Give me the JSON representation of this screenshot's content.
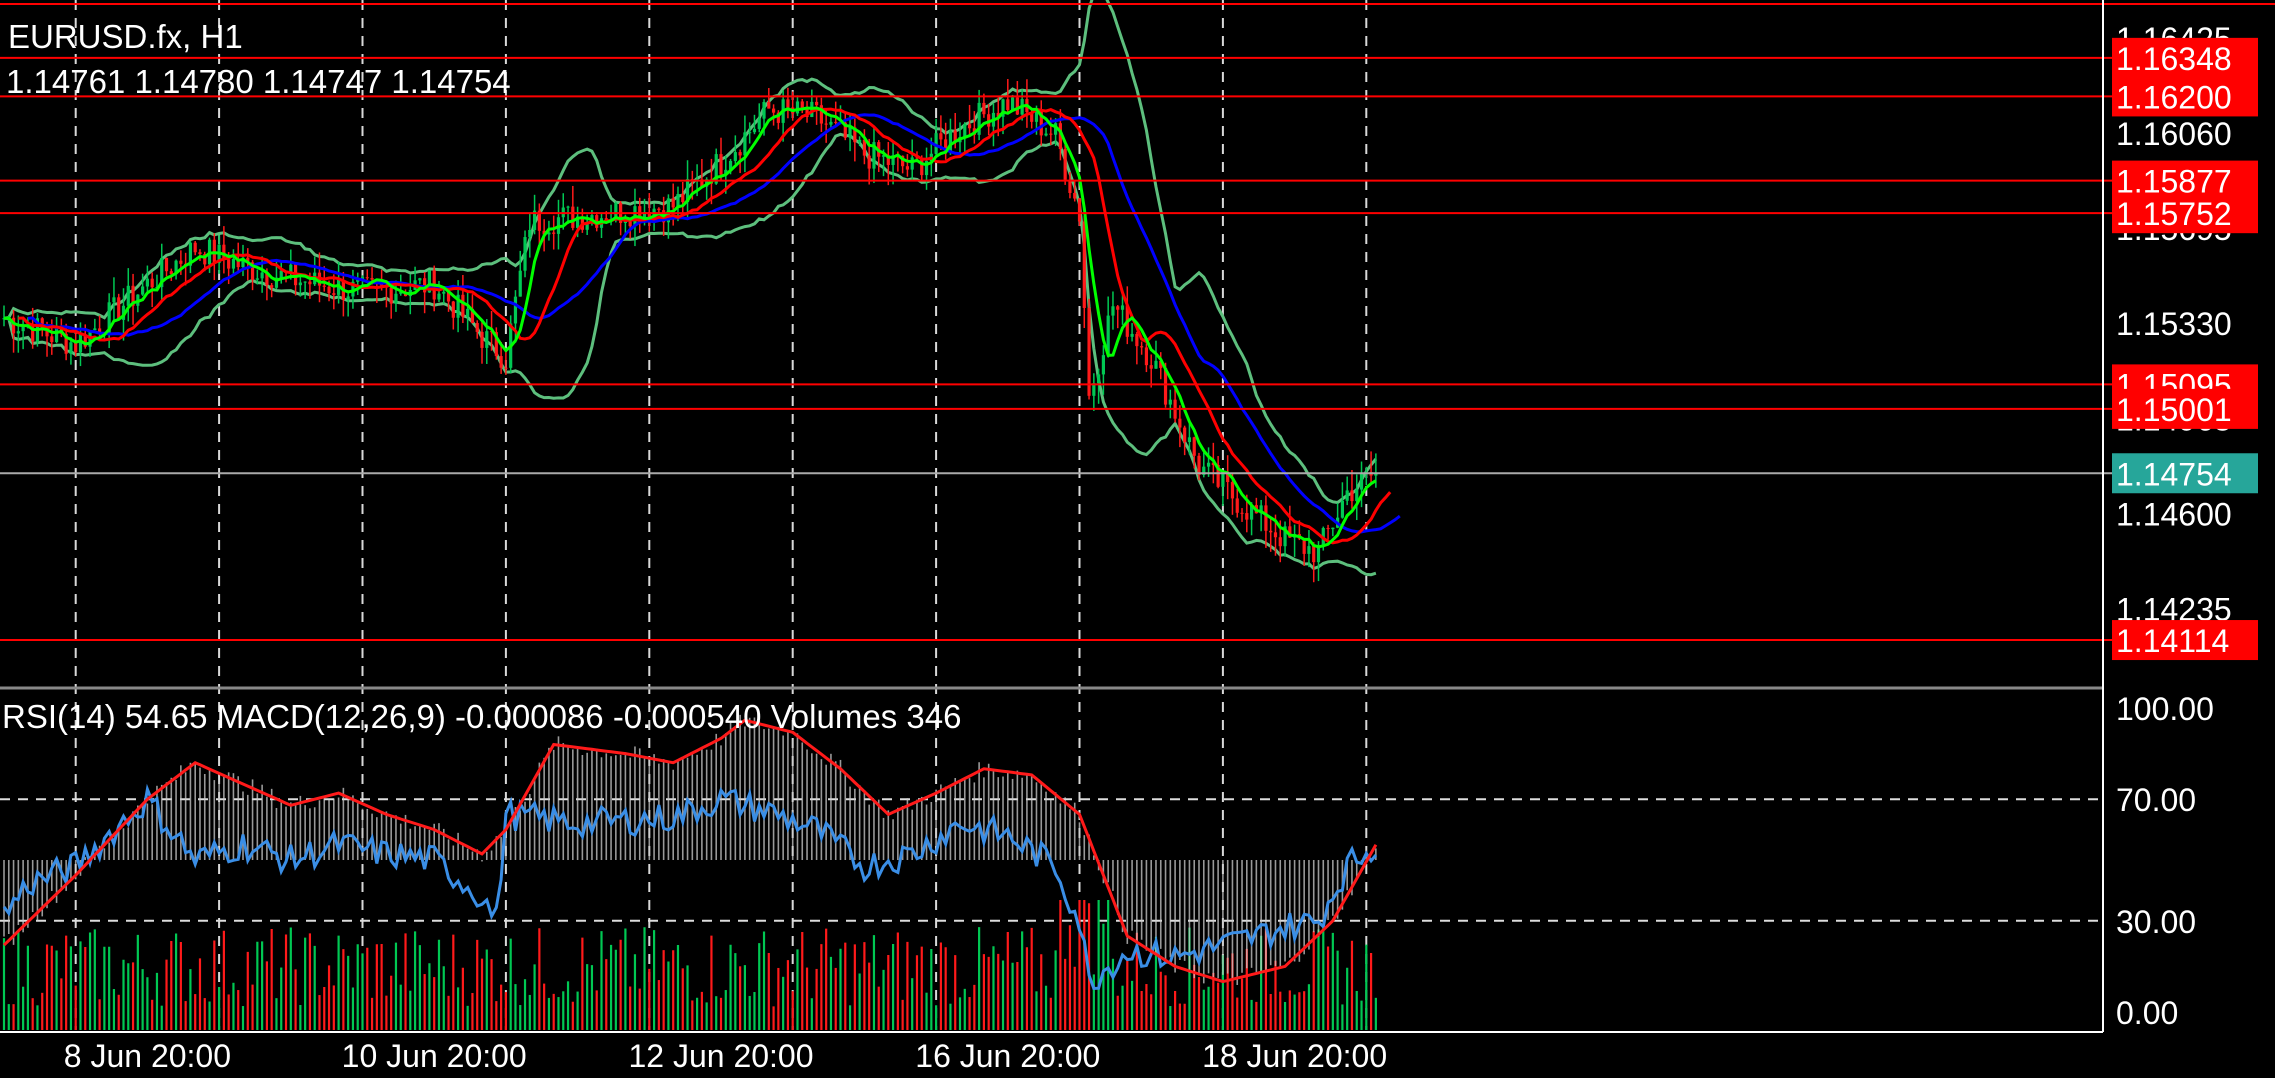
{
  "header": {
    "symbol": "EURUSD.fx, H1",
    "ohlc": "1.14761 1.14780 1.14747 1.14754"
  },
  "indicator_header": "RSI(14) 54.65 MACD(12,26,9) -0.000086 -0.000540 Volumes 346",
  "price_axis": {
    "ticks": [
      {
        "label": "1.16425",
        "value": 1.16425
      },
      {
        "label": "1.16060",
        "value": 1.1606
      },
      {
        "label": "1.15695",
        "value": 1.15695
      },
      {
        "label": "1.15330",
        "value": 1.1533
      },
      {
        "label": "1.14965",
        "value": 1.14965
      },
      {
        "label": "1.14600",
        "value": 1.146
      },
      {
        "label": "1.14235",
        "value": 1.14235
      }
    ],
    "range": [
      1.1393,
      1.1657
    ]
  },
  "horizontal_levels": [
    {
      "label": "1.16348",
      "value": 1.16348,
      "color": "#ff0000"
    },
    {
      "label": "1.16200",
      "value": 1.162,
      "color": "#ff0000"
    },
    {
      "label": "1.15877",
      "value": 1.15877,
      "color": "#ff0000"
    },
    {
      "label": "1.15752",
      "value": 1.15752,
      "color": "#ff0000"
    },
    {
      "label": "1.15095",
      "value": 1.15095,
      "color": "#ff0000"
    },
    {
      "label": "1.15001",
      "value": 1.15001,
      "color": "#ff0000"
    },
    {
      "label": "1.14114",
      "value": 1.14114,
      "color": "#ff0000"
    }
  ],
  "current_price": {
    "label": "1.14754",
    "value": 1.14754,
    "color": "#26a69a"
  },
  "indicator_axis": {
    "ticks": [
      {
        "label": "100.00",
        "value": 100
      },
      {
        "label": "70.00",
        "value": 70
      },
      {
        "label": "30.00",
        "value": 30
      },
      {
        "label": "0.00",
        "value": 0
      }
    ]
  },
  "time_axis": {
    "labels": [
      {
        "label": "8 Jun 20:00",
        "bar": 30
      },
      {
        "label": "10 Jun 20:00",
        "bar": 90
      },
      {
        "label": "12 Jun 20:00",
        "bar": 150
      },
      {
        "label": "16 Jun 20:00",
        "bar": 210
      },
      {
        "label": "18 Jun 20:00",
        "bar": 270
      }
    ],
    "gridline_bars": [
      15,
      45,
      75,
      105,
      135,
      165,
      195,
      225,
      255,
      285
    ]
  },
  "colors": {
    "background": "#000000",
    "grid": "#ffffff",
    "bull": "#00c853",
    "bear": "#ff1a1a",
    "ma_fast": "#00ff00",
    "ma_mid": "#ff0000",
    "ma_slow": "#0000ff",
    "bollinger": "#5dbf7d",
    "rsi": "#3a8ee6",
    "macd_signal": "#ff1a1a",
    "macd_hist": "#cccccc",
    "level": "#ff0000"
  },
  "chart_data": {
    "type": "line",
    "bar_count": 288,
    "series_anchors": {
      "close": [
        [
          0,
          1.1535
        ],
        [
          15,
          1.1525
        ],
        [
          30,
          1.1548
        ],
        [
          40,
          1.1562
        ],
        [
          50,
          1.1555
        ],
        [
          60,
          1.155
        ],
        [
          75,
          1.1545
        ],
        [
          90,
          1.1548
        ],
        [
          100,
          1.1528
        ],
        [
          105,
          1.152
        ],
        [
          110,
          1.1572
        ],
        [
          125,
          1.1575
        ],
        [
          140,
          1.1578
        ],
        [
          150,
          1.1595
        ],
        [
          160,
          1.1615
        ],
        [
          170,
          1.1612
        ],
        [
          180,
          1.1598
        ],
        [
          190,
          1.1592
        ],
        [
          200,
          1.1608
        ],
        [
          210,
          1.1618
        ],
        [
          220,
          1.1605
        ],
        [
          225,
          1.1575
        ],
        [
          227,
          1.1505
        ],
        [
          232,
          1.154
        ],
        [
          240,
          1.152
        ],
        [
          250,
          1.1478
        ],
        [
          260,
          1.1462
        ],
        [
          268,
          1.145
        ],
        [
          275,
          1.1445
        ],
        [
          281,
          1.1468
        ],
        [
          287,
          1.14754
        ]
      ],
      "rsi": [
        [
          0,
          32
        ],
        [
          5,
          42
        ],
        [
          15,
          48
        ],
        [
          30,
          70
        ],
        [
          40,
          50
        ],
        [
          50,
          55
        ],
        [
          60,
          50
        ],
        [
          70,
          55
        ],
        [
          80,
          52
        ],
        [
          90,
          50
        ],
        [
          100,
          38
        ],
        [
          103,
          30
        ],
        [
          105,
          65
        ],
        [
          120,
          62
        ],
        [
          140,
          64
        ],
        [
          150,
          70
        ],
        [
          160,
          66
        ],
        [
          170,
          60
        ],
        [
          180,
          48
        ],
        [
          190,
          52
        ],
        [
          200,
          62
        ],
        [
          210,
          58
        ],
        [
          220,
          48
        ],
        [
          225,
          30
        ],
        [
          227,
          10
        ],
        [
          235,
          20
        ],
        [
          245,
          18
        ],
        [
          260,
          24
        ],
        [
          268,
          28
        ],
        [
          275,
          30
        ],
        [
          281,
          48
        ],
        [
          287,
          55
        ]
      ],
      "macd_signal": [
        [
          0,
          22
        ],
        [
          15,
          45
        ],
        [
          30,
          70
        ],
        [
          40,
          82
        ],
        [
          50,
          75
        ],
        [
          60,
          68
        ],
        [
          70,
          72
        ],
        [
          80,
          65
        ],
        [
          90,
          60
        ],
        [
          100,
          52
        ],
        [
          105,
          60
        ],
        [
          115,
          88
        ],
        [
          130,
          85
        ],
        [
          140,
          82
        ],
        [
          150,
          90
        ],
        [
          155,
          96
        ],
        [
          165,
          92
        ],
        [
          175,
          80
        ],
        [
          185,
          65
        ],
        [
          195,
          72
        ],
        [
          205,
          80
        ],
        [
          215,
          78
        ],
        [
          225,
          65
        ],
        [
          235,
          25
        ],
        [
          245,
          15
        ],
        [
          255,
          10
        ],
        [
          268,
          15
        ],
        [
          278,
          30
        ],
        [
          287,
          55
        ]
      ]
    },
    "rsi_levels": [
      70,
      30
    ],
    "volume_scale_max": 1000
  }
}
